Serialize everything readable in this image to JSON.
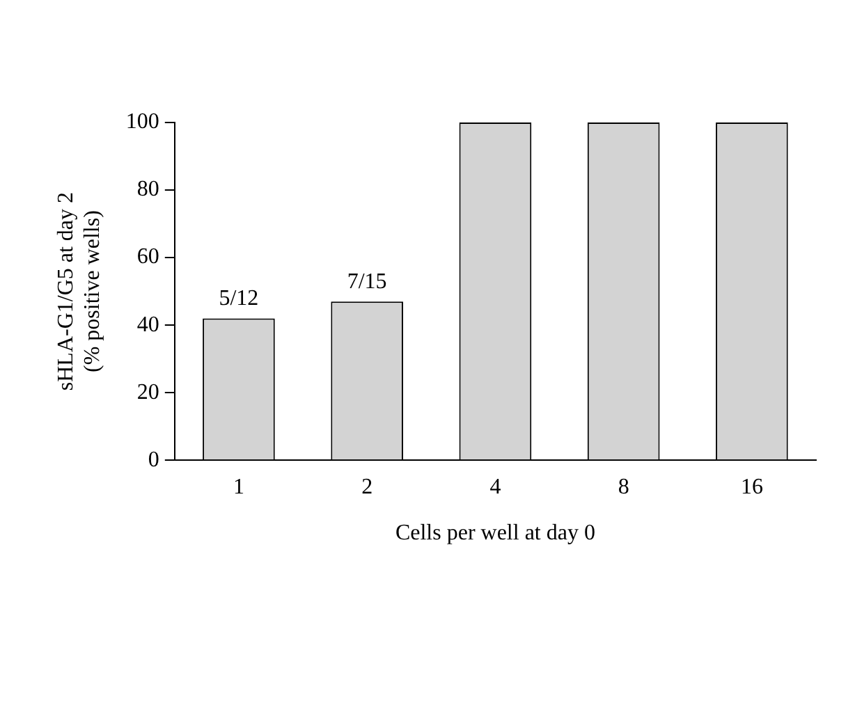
{
  "chart_data": {
    "type": "bar",
    "xlabel": "Cells per well at day 0",
    "ylabel": "sHLA-G1/G5 at day 2\n(% positive wells)",
    "categories": [
      "1",
      "2",
      "4",
      "8",
      "16"
    ],
    "values": [
      42,
      47,
      100,
      100,
      100
    ],
    "annotations": [
      {
        "text": "5/12",
        "x": "1",
        "y": 42
      },
      {
        "text": "7/15",
        "x": "2",
        "y": 47
      }
    ],
    "color": "#d3d3d3",
    "ylim": [
      0,
      100
    ],
    "yticks": [
      0,
      20,
      40,
      60,
      80,
      100
    ],
    "grid": false,
    "legend": false
  }
}
